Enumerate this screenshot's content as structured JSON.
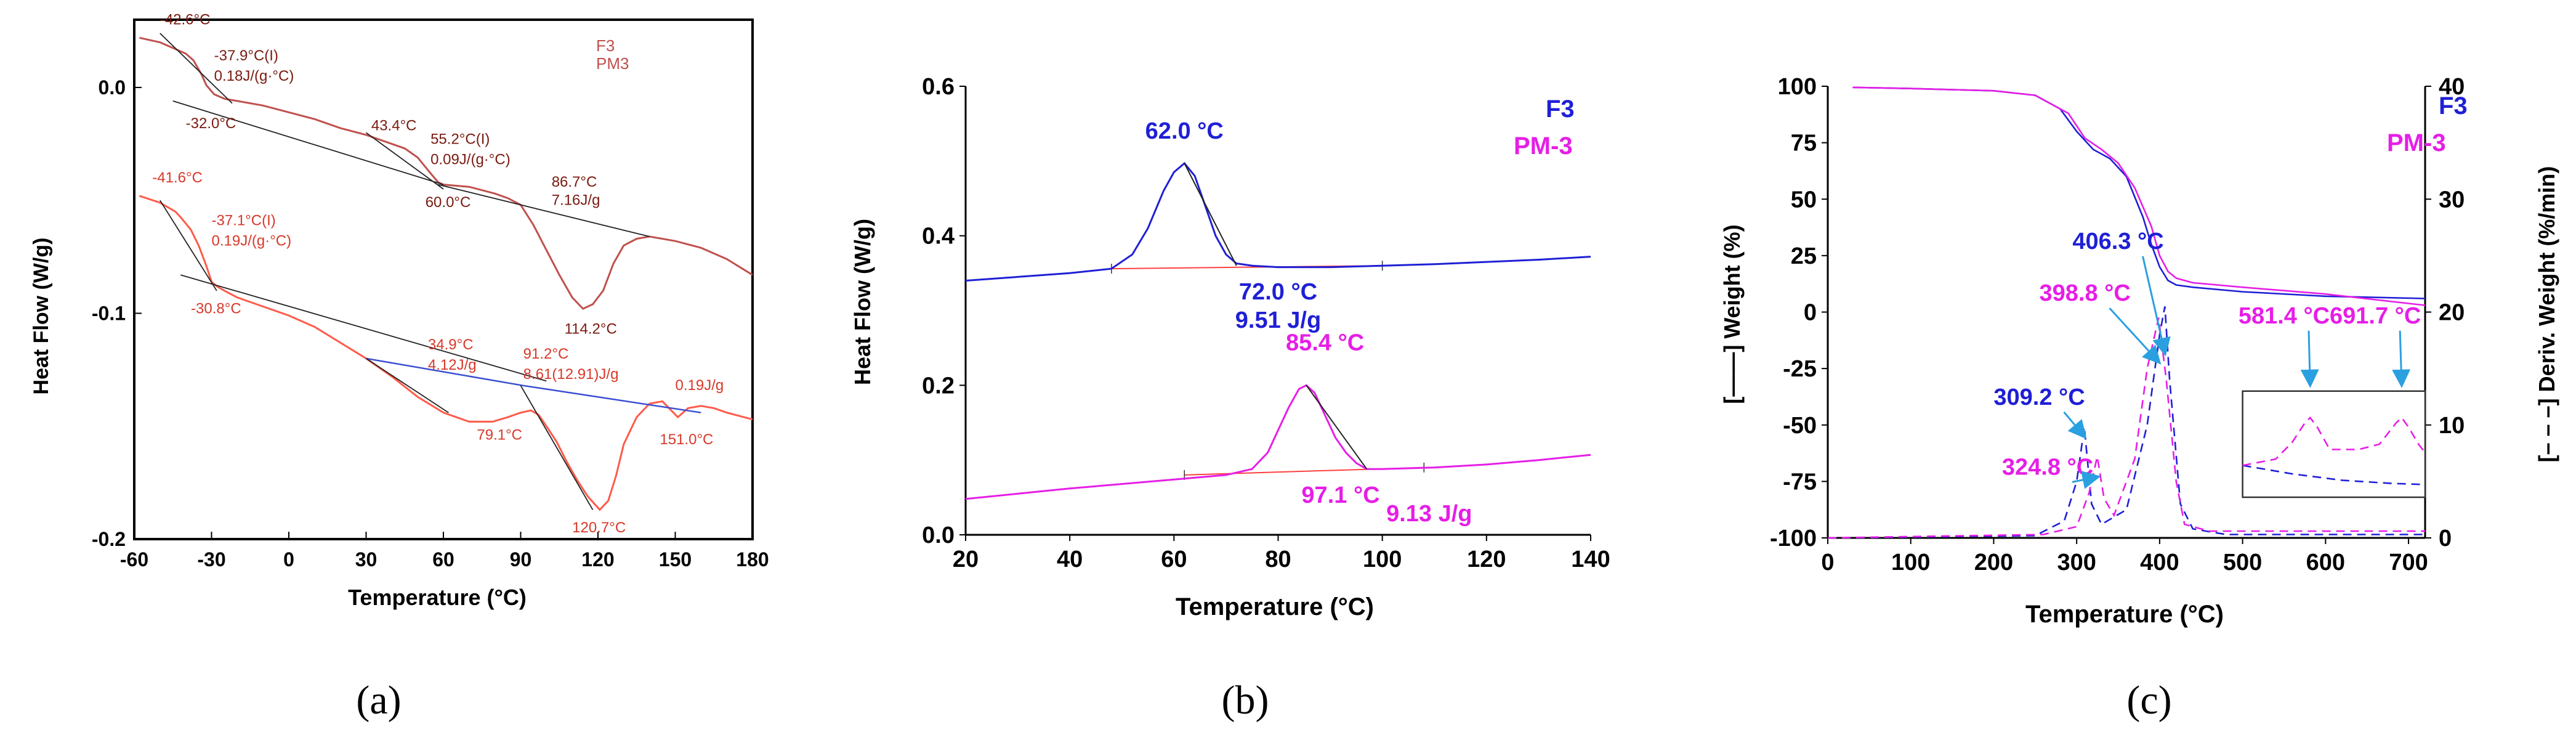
{
  "colors": {
    "f3_a": "#c0504d",
    "pm3_a": "#ff5a4a",
    "dark_a": "#7a1a10",
    "f3_b": "#1f1fd6",
    "pm3_b": "#e61ee6",
    "baseline": "#ff4040",
    "arrow": "#2aa0e0",
    "axis": "#000000"
  },
  "chart_data": [
    {
      "panel": "a",
      "caption": "(a)",
      "type": "line",
      "title": "",
      "xlabel": "Temperature (°C)",
      "ylabel": "Heat Flow (W/g)",
      "xlim": [
        -60,
        180
      ],
      "ylim": [
        -0.2,
        0.03
      ],
      "xticks": [
        -60,
        -30,
        0,
        30,
        60,
        90,
        120,
        150,
        180
      ],
      "xtick_labels": [
        "-60",
        "-30",
        "0",
        "30",
        "60",
        "90",
        "120",
        "150",
        "180"
      ],
      "yticks": [
        0.0,
        -0.1,
        -0.2
      ],
      "ytick_labels": [
        "0.0",
        "-0.1",
        "-0.2"
      ],
      "legend": [
        "F3",
        "PM3"
      ],
      "series": [
        {
          "name": "F3",
          "x": [
            -58,
            -50,
            -44,
            -40,
            -37,
            -34,
            -32,
            -29,
            -25,
            -20,
            -10,
            0,
            10,
            20,
            30,
            40,
            45,
            50,
            55,
            58,
            60,
            70,
            80,
            85,
            90,
            95,
            100,
            105,
            110,
            114.2,
            118,
            122,
            126,
            130,
            135,
            140,
            150,
            160,
            170,
            180
          ],
          "y": [
            0.022,
            0.02,
            0.017,
            0.015,
            0.012,
            0.006,
            0.001,
            -0.003,
            -0.005,
            -0.006,
            -0.008,
            -0.011,
            -0.014,
            -0.018,
            -0.021,
            -0.025,
            -0.027,
            -0.031,
            -0.038,
            -0.042,
            -0.043,
            -0.044,
            -0.047,
            -0.049,
            -0.052,
            -0.061,
            -0.072,
            -0.083,
            -0.093,
            -0.098,
            -0.096,
            -0.09,
            -0.078,
            -0.07,
            -0.067,
            -0.066,
            -0.068,
            -0.071,
            -0.076,
            -0.083
          ]
        },
        {
          "name": "PM3",
          "x": [
            -58,
            -50,
            -44,
            -41.6,
            -38,
            -35,
            -32,
            -30,
            -28,
            -25,
            -20,
            -10,
            0,
            10,
            20,
            30,
            40,
            50,
            60,
            65,
            70,
            79.1,
            85,
            90,
            94,
            97,
            100,
            104,
            108,
            112,
            116,
            120.7,
            124,
            127,
            130,
            135,
            140,
            145,
            151,
            155,
            160,
            165,
            170,
            180
          ],
          "y": [
            -0.048,
            -0.051,
            -0.055,
            -0.058,
            -0.063,
            -0.07,
            -0.079,
            -0.086,
            -0.088,
            -0.09,
            -0.093,
            -0.097,
            -0.101,
            -0.106,
            -0.113,
            -0.12,
            -0.128,
            -0.137,
            -0.144,
            -0.146,
            -0.148,
            -0.148,
            -0.146,
            -0.144,
            -0.143,
            -0.145,
            -0.15,
            -0.157,
            -0.166,
            -0.174,
            -0.181,
            -0.187,
            -0.183,
            -0.172,
            -0.158,
            -0.146,
            -0.14,
            -0.139,
            -0.146,
            -0.142,
            -0.141,
            -0.142,
            -0.144,
            -0.147
          ]
        }
      ],
      "tangents": [
        {
          "x": [
            -50,
            -22
          ],
          "y": [
            0.024,
            -0.007
          ]
        },
        {
          "x": [
            -45,
            60
          ],
          "y": [
            -0.006,
            -0.043
          ]
        },
        {
          "x": [
            30,
            60
          ],
          "y": [
            -0.02,
            -0.045
          ]
        },
        {
          "x": [
            58,
            140
          ],
          "y": [
            -0.043,
            -0.066
          ]
        },
        {
          "x": [
            -50,
            -28
          ],
          "y": [
            -0.05,
            -0.09
          ]
        },
        {
          "x": [
            -42,
            100
          ],
          "y": [
            -0.083,
            -0.13
          ]
        },
        {
          "x": [
            30,
            62
          ],
          "y": [
            -0.12,
            -0.144
          ]
        },
        {
          "x": [
            90,
            118
          ],
          "y": [
            -0.132,
            -0.187
          ]
        }
      ],
      "baselines": [
        {
          "x": [
            30,
            91
          ],
          "y": [
            -0.12,
            -0.132
          ],
          "color": "blue"
        },
        {
          "x": [
            91,
            160
          ],
          "y": [
            -0.132,
            -0.144
          ],
          "color": "blue"
        }
      ],
      "annotations": [
        {
          "text": "-42.6°C",
          "x": -50,
          "y": 0.028,
          "color": "dark"
        },
        {
          "text": "-37.9°C(I)",
          "x": -29,
          "y": 0.012,
          "color": "dark"
        },
        {
          "text": "0.18J/(g·°C)",
          "x": -29,
          "y": 0.003,
          "color": "dark"
        },
        {
          "text": "-32.0°C",
          "x": -40,
          "y": -0.018,
          "color": "dark"
        },
        {
          "text": "43.4°C",
          "x": 32,
          "y": -0.019,
          "color": "dark"
        },
        {
          "text": "55.2°C(I)",
          "x": 55,
          "y": -0.025,
          "color": "dark"
        },
        {
          "text": "0.09J/(g·°C)",
          "x": 55,
          "y": -0.034,
          "color": "dark"
        },
        {
          "text": "60.0°C",
          "x": 53,
          "y": -0.053,
          "color": "dark"
        },
        {
          "text": "86.7°C",
          "x": 102,
          "y": -0.044,
          "color": "dark"
        },
        {
          "text": "7.16J/g",
          "x": 102,
          "y": -0.052,
          "color": "dark"
        },
        {
          "text": "114.2°C",
          "x": 107,
          "y": -0.109,
          "color": "dark"
        },
        {
          "text": "-41.6°C",
          "x": -53,
          "y": -0.042,
          "color": "light"
        },
        {
          "text": "-37.1°C(I)",
          "x": -30,
          "y": -0.061,
          "color": "light"
        },
        {
          "text": "0.19J/(g·°C)",
          "x": -30,
          "y": -0.07,
          "color": "light"
        },
        {
          "text": "-30.8°C",
          "x": -38,
          "y": -0.1,
          "color": "light"
        },
        {
          "text": "34.9°C",
          "x": 54,
          "y": -0.116,
          "color": "light"
        },
        {
          "text": "4.12J/g",
          "x": 54,
          "y": -0.125,
          "color": "light"
        },
        {
          "text": "91.2°C",
          "x": 91,
          "y": -0.12,
          "color": "light"
        },
        {
          "text": "8.61(12.91)J/g",
          "x": 91,
          "y": -0.129,
          "color": "light"
        },
        {
          "text": "0.19J/g",
          "x": 150,
          "y": -0.134,
          "color": "light"
        },
        {
          "text": "79.1°C",
          "x": 73,
          "y": -0.156,
          "color": "light"
        },
        {
          "text": "151.0°C",
          "x": 144,
          "y": -0.158,
          "color": "light"
        },
        {
          "text": "120.7°C",
          "x": 110,
          "y": -0.197,
          "color": "light"
        }
      ]
    },
    {
      "panel": "b",
      "caption": "(b)",
      "type": "line",
      "title": "",
      "xlabel": "Temperature (°C)",
      "ylabel": "Heat Flow (W/g)",
      "xlim": [
        20,
        140
      ],
      "ylim": [
        0,
        0.6
      ],
      "xticks": [
        20,
        40,
        60,
        80,
        100,
        120,
        140
      ],
      "xtick_labels": [
        "20",
        "40",
        "60",
        "80",
        "100",
        "120",
        "140"
      ],
      "yticks": [
        0.0,
        0.2,
        0.4,
        0.6
      ],
      "ytick_labels": [
        "0.0",
        "0.2",
        "0.4",
        "0.6"
      ],
      "legend": [
        "F3",
        "PM-3"
      ],
      "series": [
        {
          "name": "F3",
          "x": [
            20,
            30,
            40,
            48,
            52,
            55,
            58,
            60,
            62,
            64,
            66,
            68,
            70,
            72,
            75,
            80,
            90,
            100,
            110,
            120,
            130,
            140
          ],
          "y": [
            0.34,
            0.345,
            0.35,
            0.356,
            0.375,
            0.41,
            0.46,
            0.485,
            0.497,
            0.48,
            0.44,
            0.4,
            0.375,
            0.363,
            0.36,
            0.358,
            0.358,
            0.36,
            0.362,
            0.365,
            0.368,
            0.372
          ]
        },
        {
          "name": "PM-3",
          "x": [
            20,
            30,
            40,
            50,
            60,
            70,
            75,
            78,
            80,
            82,
            84,
            85.4,
            87,
            89,
            91,
            93,
            95,
            97,
            100,
            110,
            120,
            130,
            140
          ],
          "y": [
            0.048,
            0.055,
            0.062,
            0.068,
            0.074,
            0.08,
            0.088,
            0.11,
            0.14,
            0.17,
            0.195,
            0.2,
            0.19,
            0.16,
            0.13,
            0.11,
            0.096,
            0.088,
            0.088,
            0.09,
            0.094,
            0.1,
            0.107
          ]
        }
      ],
      "baselines": [
        {
          "x": [
            48,
            100
          ],
          "y": [
            0.356,
            0.36
          ]
        },
        {
          "x": [
            62,
            108
          ],
          "y": [
            0.08,
            0.09
          ]
        }
      ],
      "tangents": [
        {
          "x": [
            62,
            72
          ],
          "y": [
            0.497,
            0.36
          ]
        },
        {
          "x": [
            85.4,
            97
          ],
          "y": [
            0.2,
            0.088
          ]
        }
      ],
      "annotations": [
        {
          "text": "62.0 °C",
          "x": 62,
          "y": 0.53,
          "color": "blue"
        },
        {
          "text": "72.0 °C",
          "x": 80,
          "y": 0.315,
          "color": "blue"
        },
        {
          "text": "9.51 J/g",
          "x": 80,
          "y": 0.277,
          "color": "blue"
        },
        {
          "text": "85.4 °C",
          "x": 89,
          "y": 0.247,
          "color": "magenta"
        },
        {
          "text": "97.1 °C",
          "x": 92,
          "y": 0.043,
          "color": "magenta"
        },
        {
          "text": "9.13 J/g",
          "x": 109,
          "y": 0.018,
          "color": "magenta"
        }
      ]
    },
    {
      "panel": "c",
      "caption": "(c)",
      "type": "line",
      "title": "",
      "xlabel": "Temperature (°C)",
      "ylabel": "[——] Weight (%)",
      "y2label": "[– – –] Deriv. Weight (%/min)",
      "xlim": [
        0,
        720
      ],
      "ylim": [
        -100,
        100
      ],
      "y2lim": [
        0,
        40
      ],
      "xticks": [
        0,
        100,
        200,
        300,
        400,
        500,
        600,
        700
      ],
      "xtick_labels": [
        "0",
        "100",
        "200",
        "300",
        "400",
        "500",
        "600",
        "700"
      ],
      "yticks": [
        100,
        75,
        50,
        25,
        0,
        -25,
        -50,
        -75,
        -100
      ],
      "ytick_labels": [
        "100",
        "75",
        "50",
        "25",
        "0",
        "-25",
        "-50",
        "-75",
        "-100"
      ],
      "y2ticks": [
        0,
        10,
        20,
        30,
        40
      ],
      "y2tick_labels": [
        "0",
        "10",
        "20",
        "30",
        "40"
      ],
      "legend": [
        "F3",
        "PM-3"
      ],
      "series": [
        {
          "name": "F3 weight",
          "axis": "y",
          "x": [
            30,
            100,
            200,
            250,
            280,
            300,
            320,
            340,
            360,
            380,
            390,
            400,
            410,
            420,
            440,
            500,
            600,
            720
          ],
          "y": [
            99.5,
            99,
            98,
            96,
            90,
            80,
            72,
            68,
            60,
            42,
            30,
            20,
            14,
            12,
            11,
            9,
            7,
            6
          ]
        },
        {
          "name": "PM-3 weight",
          "axis": "y",
          "x": [
            30,
            100,
            200,
            250,
            290,
            310,
            330,
            350,
            370,
            390,
            400,
            410,
            420,
            440,
            500,
            600,
            720
          ],
          "y": [
            99.5,
            99,
            98,
            96,
            88,
            77,
            72,
            66,
            55,
            38,
            25,
            18,
            15,
            13,
            11,
            8,
            3
          ]
        },
        {
          "name": "F3 deriv",
          "axis": "y2",
          "x": [
            0,
            250,
            285,
            300,
            309.2,
            318,
            330,
            360,
            385,
            400,
            406.3,
            412,
            425,
            440,
            480,
            720
          ],
          "y": [
            0,
            0.2,
            1.5,
            5,
            9.8,
            3,
            1.2,
            2.5,
            10,
            18,
            20.5,
            14,
            3,
            0.8,
            0.3,
            0.3
          ]
        },
        {
          "name": "PM-3 deriv",
          "axis": "y2",
          "x": [
            0,
            260,
            300,
            315,
            324.8,
            333,
            345,
            370,
            385,
            398.8,
            408,
            420,
            430,
            460,
            720
          ],
          "y": [
            0,
            0.3,
            1,
            4,
            7.2,
            3.5,
            2,
            7,
            15,
            19.5,
            14,
            5,
            1.2,
            0.6,
            0.6
          ]
        }
      ],
      "inset": {
        "xlim": [
          500,
          720
        ],
        "ylim": [
          0,
          1
        ],
        "series": [
          {
            "name": "F3 deriv (zoom)",
            "x": [
              500,
              560,
              620,
              680,
              720
            ],
            "y": [
              0.3,
              0.22,
              0.16,
              0.13,
              0.12
            ]
          },
          {
            "name": "PM-3 deriv (zoom)",
            "x": [
              500,
              540,
              560,
              575,
              581.4,
              590,
              605,
              640,
              665,
              685,
              691.7,
              700,
              712,
              720
            ],
            "y": [
              0.3,
              0.36,
              0.52,
              0.7,
              0.75,
              0.66,
              0.45,
              0.45,
              0.5,
              0.7,
              0.75,
              0.66,
              0.5,
              0.42
            ]
          }
        ]
      },
      "annotations": [
        {
          "text": "309.2 °C",
          "x": 255,
          "y": -41,
          "color": "blue",
          "arrow_to": [
            309.2,
            -55
          ]
        },
        {
          "text": "324.8 °C",
          "x": 265,
          "y": -72,
          "color": "magenta",
          "arrow_to": [
            324.8,
            -73
          ]
        },
        {
          "text": "398.8 °C",
          "x": 310,
          "y": 5,
          "color": "magenta",
          "arrow_to": [
            398.8,
            -22
          ]
        },
        {
          "text": "406.3 °C",
          "x": 350,
          "y": 28,
          "color": "blue",
          "arrow_to": [
            406.3,
            -18
          ]
        },
        {
          "text": "581.4 °C",
          "x": 550,
          "y": -5,
          "color": "magenta",
          "arrow_to": [
            581.4,
            -32
          ]
        },
        {
          "text": "691.7 °C",
          "x": 660,
          "y": -5,
          "color": "magenta",
          "arrow_to": [
            691.7,
            -32
          ]
        }
      ]
    }
  ]
}
